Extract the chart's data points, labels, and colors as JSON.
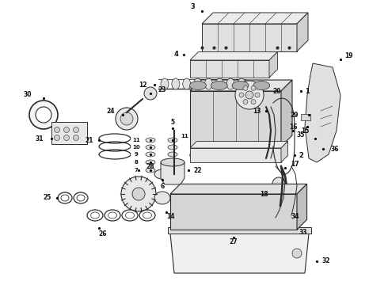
{
  "bg_color": "#ffffff",
  "line_color": "#2a2a2a",
  "label_color": "#111111",
  "figsize": [
    4.9,
    3.6
  ],
  "dpi": 100,
  "lw": 0.6
}
